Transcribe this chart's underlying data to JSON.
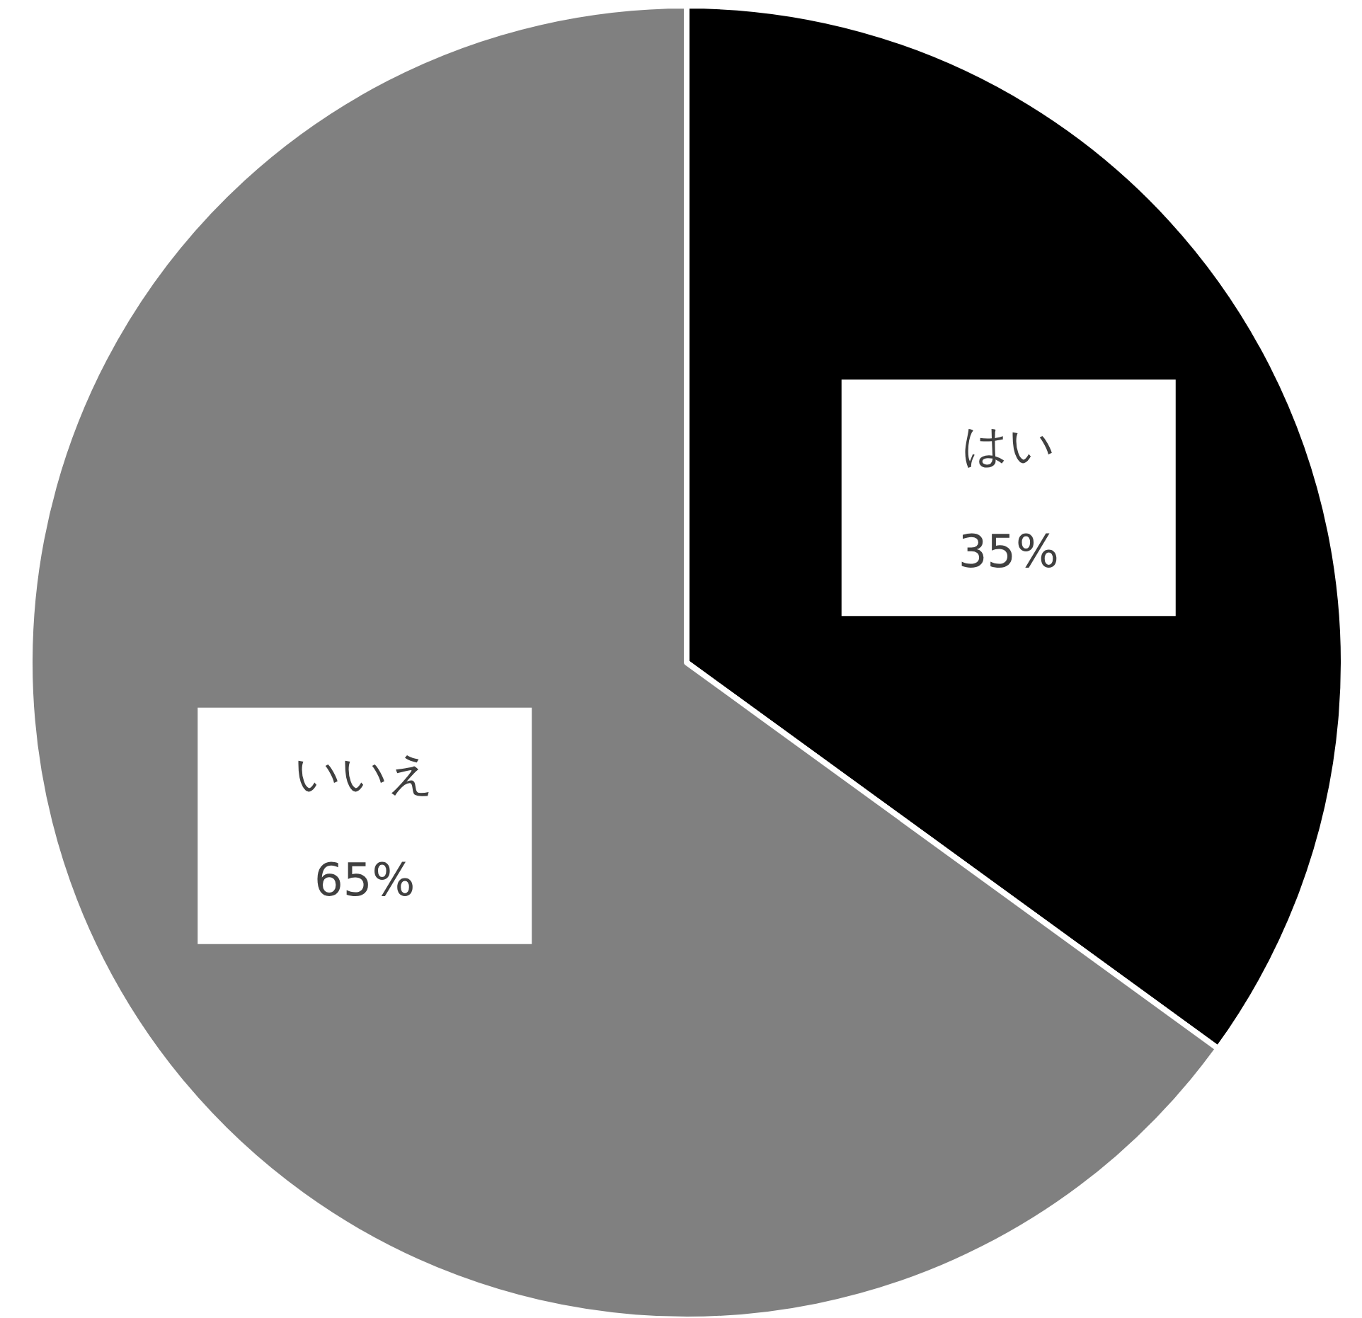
{
  "chart_data": {
    "type": "pie",
    "categories": [
      "はい",
      "いいえ"
    ],
    "values": [
      35,
      65
    ],
    "colors": [
      "#000000",
      "#808080"
    ],
    "value_labels": [
      "35%",
      "65%"
    ]
  }
}
